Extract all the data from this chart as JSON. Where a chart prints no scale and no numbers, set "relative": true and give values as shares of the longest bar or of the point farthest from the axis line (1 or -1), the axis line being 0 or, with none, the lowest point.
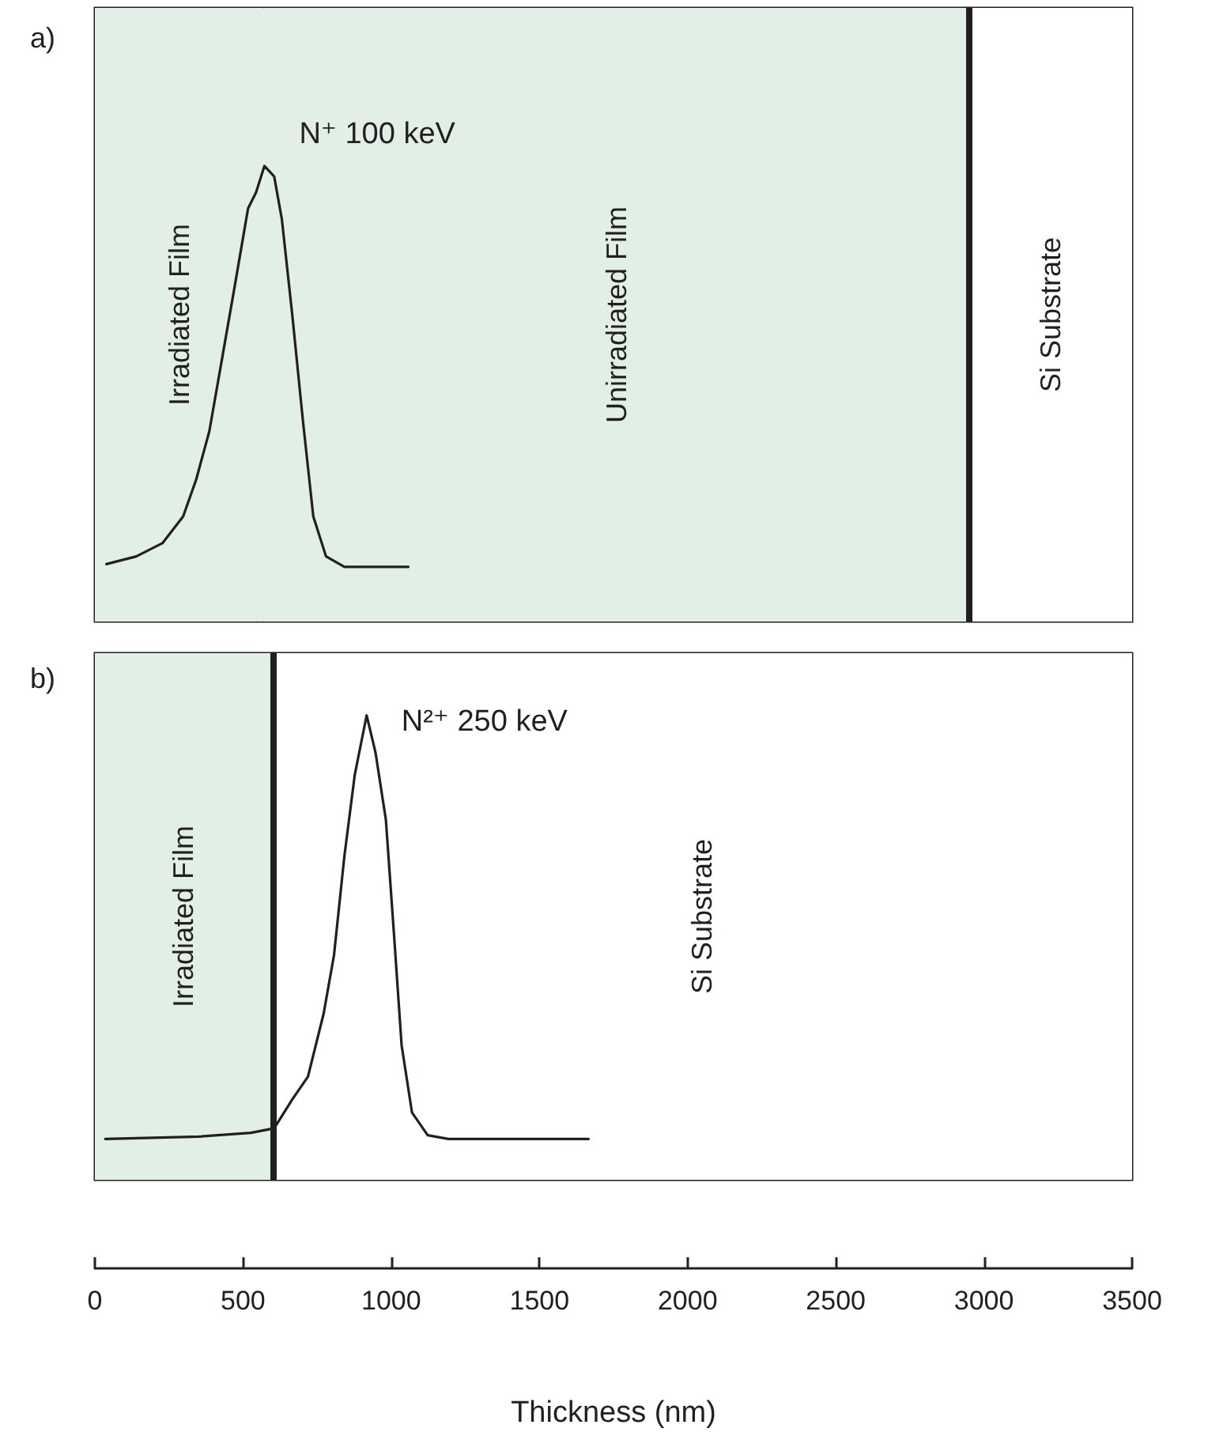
{
  "chart_data": [
    {
      "type": "line",
      "title": "a)",
      "relative": true,
      "xlim": [
        0,
        3500
      ],
      "xticks": [
        0,
        500,
        1000,
        1500,
        2000,
        2500,
        3000,
        3500
      ],
      "tick_labels": false,
      "marker": "none",
      "line_style": "solid",
      "grid": false,
      "series": [
        {
          "color": "#231f20",
          "x": [
            39,
            140,
            228,
            298,
            342,
            386,
            430,
            474,
            517,
            544,
            572,
            605,
            631,
            666,
            702,
            737,
            780,
            842,
            1058
          ],
          "values": [
            0.126,
            0.143,
            0.172,
            0.231,
            0.312,
            0.417,
            0.58,
            0.744,
            0.907,
            0.942,
            1.0,
            0.977,
            0.883,
            0.674,
            0.441,
            0.231,
            0.143,
            0.12,
            0.12
          ]
        }
      ],
      "bands": [
        {
          "axis": "x",
          "from": 0,
          "to": 570,
          "label": "Irradiated Film",
          "color": "#e1efe6"
        },
        {
          "axis": "x",
          "from": 570,
          "to": 2950,
          "label": "Unirradiated Film",
          "color": "#e1efe6"
        },
        {
          "axis": "x",
          "from": 2950,
          "to": 3500,
          "label": "Si Substrate",
          "color": "#ffffff"
        }
      ],
      "ref_lines": [
        {
          "axis": "x",
          "value": 2950,
          "color": "#231f20"
        }
      ],
      "annotations": [
        {
          "text": "N⁺ 100 keV",
          "x": 572,
          "y": 1.0
        }
      ]
    },
    {
      "type": "line",
      "title": "b)",
      "relative": true,
      "xlim": [
        0,
        3500
      ],
      "xticks": [
        0,
        500,
        1000,
        1500,
        2000,
        2500,
        3000,
        3500
      ],
      "tick_labels": "x",
      "xlabel": "Thickness (nm)",
      "marker": "none",
      "line_style": "solid",
      "grid": false,
      "series": [
        {
          "color": "#231f20",
          "x": [
            35,
            351,
            526,
            605,
            667,
            719,
            772,
            807,
            842,
            877,
            917,
            947,
            982,
            1009,
            1035,
            1070,
            1123,
            1193,
            1666
          ],
          "values": [
            0.088,
            0.093,
            0.101,
            0.111,
            0.174,
            0.222,
            0.358,
            0.484,
            0.697,
            0.872,
            1.0,
            0.92,
            0.775,
            0.532,
            0.29,
            0.145,
            0.096,
            0.088,
            0.088
          ]
        }
      ],
      "bands": [
        {
          "axis": "x",
          "from": 0,
          "to": 600,
          "label": "Irradiated Film",
          "color": "#e1efe6"
        },
        {
          "axis": "x",
          "from": 600,
          "to": 3500,
          "label": "Si Substrate",
          "color": "#ffffff"
        }
      ],
      "ref_lines": [
        {
          "axis": "x",
          "value": 600,
          "color": "#231f20"
        }
      ],
      "annotations": [
        {
          "text": "N²⁺ 250 keV",
          "x": 917,
          "y": 1.0
        }
      ]
    }
  ]
}
